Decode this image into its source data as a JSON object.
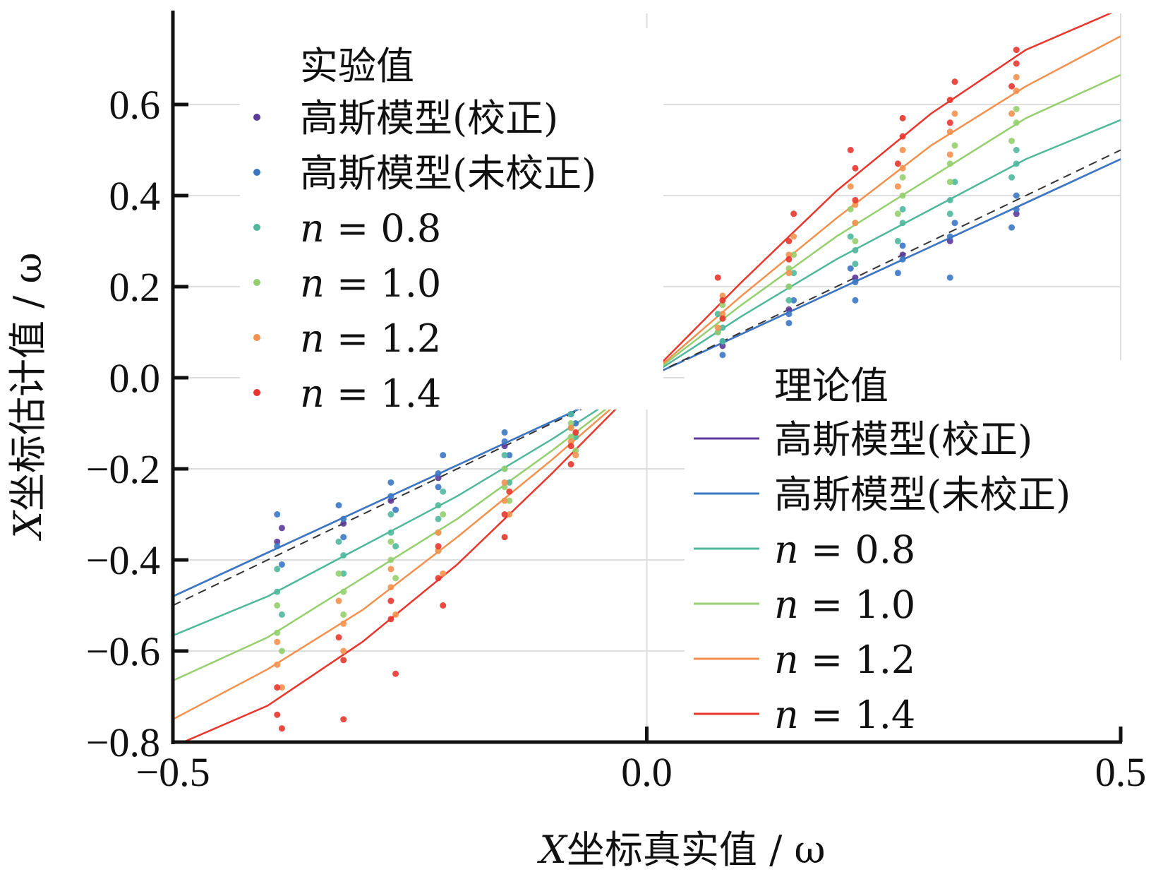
{
  "chart_data": {
    "type": "scatter",
    "xlabel": "X坐标真实值 / ω",
    "ylabel": "X坐标估计值 / ω",
    "xlim": [
      -0.5,
      0.5
    ],
    "ylim": [
      -0.8,
      0.8
    ],
    "xticks": [
      "-0.5",
      "0.0",
      "0.5"
    ],
    "yticks": [
      "-0.8",
      "-0.6",
      "-0.4",
      "-0.2",
      "0.0",
      "0.2",
      "0.4",
      "0.6"
    ],
    "grid": true,
    "scatter_legend": {
      "title": "实验值",
      "placement": "top-left",
      "entries": [
        "高斯模型(校正)",
        "高斯模型(未校正)",
        "n = 0.8",
        "n = 1.0",
        "n = 1.2",
        "n = 1.4"
      ]
    },
    "line_legend": {
      "title": "理论值",
      "placement": "bottom-right",
      "entries": [
        "高斯模型(校正)",
        "高斯模型(未校正)",
        "n = 0.8",
        "n = 1.0",
        "n = 1.2",
        "n = 1.4"
      ]
    },
    "colors": [
      "#5b3a9a",
      "#3b78c4",
      "#4fb89c",
      "#96cf6e",
      "#f4914f",
      "#e8362c"
    ],
    "theory_x": [
      -0.5,
      -0.4,
      -0.3,
      -0.2,
      -0.1,
      0.0,
      0.1,
      0.2,
      0.3,
      0.4,
      0.5
    ],
    "reference_line": {
      "style": "dashed",
      "color": "#333333",
      "y": [
        -0.5,
        -0.4,
        -0.3,
        -0.2,
        -0.1,
        0.0,
        0.1,
        0.2,
        0.3,
        0.4,
        0.5
      ]
    },
    "theory": [
      {
        "name": "高斯模型(校正)",
        "y": [
          -0.48,
          -0.384,
          -0.288,
          -0.192,
          -0.096,
          0,
          0.096,
          0.192,
          0.288,
          0.384,
          0.48
        ]
      },
      {
        "name": "高斯模型(未校正)",
        "y": [
          -0.48,
          -0.384,
          -0.288,
          -0.192,
          -0.096,
          0,
          0.096,
          0.192,
          0.288,
          0.384,
          0.48
        ]
      },
      {
        "name": "n = 0.8",
        "y": [
          -0.566,
          -0.48,
          -0.37,
          -0.26,
          -0.135,
          0,
          0.135,
          0.26,
          0.37,
          0.48,
          0.566
        ]
      },
      {
        "name": "n = 1.0",
        "y": [
          -0.665,
          -0.57,
          -0.44,
          -0.31,
          -0.16,
          0,
          0.16,
          0.31,
          0.44,
          0.57,
          0.665
        ]
      },
      {
        "name": "n = 1.2",
        "y": [
          -0.75,
          -0.64,
          -0.51,
          -0.35,
          -0.18,
          0,
          0.18,
          0.35,
          0.51,
          0.64,
          0.75
        ]
      },
      {
        "name": "n = 1.4",
        "y": [
          -0.81,
          -0.72,
          -0.58,
          -0.41,
          -0.21,
          0,
          0.21,
          0.41,
          0.58,
          0.72,
          0.81
        ]
      }
    ],
    "experiment": [
      {
        "name": "高斯模型(校正)",
        "points": [
          [
            -0.39,
            -0.36
          ],
          [
            -0.385,
            -0.33
          ],
          [
            -0.32,
            -0.32
          ],
          [
            -0.27,
            -0.27
          ],
          [
            -0.22,
            -0.22
          ],
          [
            -0.15,
            -0.15
          ],
          [
            -0.08,
            -0.08
          ],
          [
            0.08,
            0.07
          ],
          [
            0.15,
            0.15
          ],
          [
            0.22,
            0.22
          ],
          [
            0.27,
            0.27
          ],
          [
            0.32,
            0.3
          ],
          [
            0.39,
            0.36
          ]
        ]
      },
      {
        "name": "高斯模型(未校正)",
        "points": [
          [
            -0.39,
            -0.37
          ],
          [
            -0.39,
            -0.3
          ],
          [
            -0.385,
            -0.41
          ],
          [
            -0.32,
            -0.31
          ],
          [
            -0.325,
            -0.28
          ],
          [
            -0.32,
            -0.35
          ],
          [
            -0.27,
            -0.26
          ],
          [
            -0.27,
            -0.23
          ],
          [
            -0.265,
            -0.29
          ],
          [
            -0.22,
            -0.21
          ],
          [
            -0.215,
            -0.17
          ],
          [
            -0.22,
            -0.24
          ],
          [
            -0.15,
            -0.14
          ],
          [
            -0.15,
            -0.12
          ],
          [
            -0.145,
            -0.17
          ],
          [
            -0.08,
            -0.08
          ],
          [
            -0.08,
            -0.06
          ],
          [
            -0.075,
            -0.1
          ],
          [
            -0.01,
            -0.01
          ],
          [
            0.01,
            0.01
          ],
          [
            0.012,
            0.03
          ],
          [
            0.08,
            0.08
          ],
          [
            0.08,
            0.05
          ],
          [
            0.075,
            0.1
          ],
          [
            0.15,
            0.14
          ],
          [
            0.155,
            0.17
          ],
          [
            0.15,
            0.12
          ],
          [
            0.22,
            0.21
          ],
          [
            0.215,
            0.24
          ],
          [
            0.22,
            0.17
          ],
          [
            0.27,
            0.26
          ],
          [
            0.27,
            0.29
          ],
          [
            0.265,
            0.23
          ],
          [
            0.32,
            0.31
          ],
          [
            0.325,
            0.34
          ],
          [
            0.32,
            0.22
          ],
          [
            0.39,
            0.37
          ],
          [
            0.39,
            0.4
          ],
          [
            0.385,
            0.33
          ]
        ]
      },
      {
        "name": "n = 0.8",
        "points": [
          [
            -0.39,
            -0.47
          ],
          [
            -0.39,
            -0.42
          ],
          [
            -0.385,
            -0.52
          ],
          [
            -0.32,
            -0.39
          ],
          [
            -0.325,
            -0.36
          ],
          [
            -0.32,
            -0.43
          ],
          [
            -0.27,
            -0.34
          ],
          [
            -0.27,
            -0.3
          ],
          [
            -0.265,
            -0.37
          ],
          [
            -0.22,
            -0.28
          ],
          [
            -0.215,
            -0.25
          ],
          [
            -0.22,
            -0.31
          ],
          [
            -0.15,
            -0.2
          ],
          [
            -0.15,
            -0.17
          ],
          [
            -0.145,
            -0.23
          ],
          [
            -0.08,
            -0.11
          ],
          [
            -0.08,
            -0.08
          ],
          [
            -0.075,
            -0.13
          ],
          [
            -0.01,
            -0.01
          ],
          [
            0.01,
            0.02
          ],
          [
            0.012,
            0.04
          ],
          [
            0.08,
            0.11
          ],
          [
            0.08,
            0.08
          ],
          [
            0.075,
            0.14
          ],
          [
            0.15,
            0.2
          ],
          [
            0.155,
            0.23
          ],
          [
            0.15,
            0.17
          ],
          [
            0.22,
            0.28
          ],
          [
            0.215,
            0.31
          ],
          [
            0.22,
            0.25
          ],
          [
            0.27,
            0.34
          ],
          [
            0.27,
            0.37
          ],
          [
            0.265,
            0.3
          ],
          [
            0.32,
            0.39
          ],
          [
            0.325,
            0.43
          ],
          [
            0.32,
            0.36
          ],
          [
            0.39,
            0.47
          ],
          [
            0.39,
            0.5
          ],
          [
            0.385,
            0.44
          ]
        ]
      },
      {
        "name": "n = 1.0",
        "points": [
          [
            -0.39,
            -0.56
          ],
          [
            -0.39,
            -0.5
          ],
          [
            -0.385,
            -0.6
          ],
          [
            -0.32,
            -0.47
          ],
          [
            -0.325,
            -0.43
          ],
          [
            -0.32,
            -0.52
          ],
          [
            -0.27,
            -0.4
          ],
          [
            -0.27,
            -0.36
          ],
          [
            -0.265,
            -0.44
          ],
          [
            -0.22,
            -0.34
          ],
          [
            -0.215,
            -0.3
          ],
          [
            -0.22,
            -0.38
          ],
          [
            -0.15,
            -0.24
          ],
          [
            -0.15,
            -0.2
          ],
          [
            -0.145,
            -0.27
          ],
          [
            -0.08,
            -0.13
          ],
          [
            -0.08,
            -0.1
          ],
          [
            -0.075,
            -0.16
          ],
          [
            -0.01,
            -0.02
          ],
          [
            0.01,
            0.02
          ],
          [
            0.012,
            0.05
          ],
          [
            0.08,
            0.13
          ],
          [
            0.08,
            0.16
          ],
          [
            0.075,
            0.1
          ],
          [
            0.15,
            0.24
          ],
          [
            0.155,
            0.27
          ],
          [
            0.15,
            0.2
          ],
          [
            0.22,
            0.34
          ],
          [
            0.215,
            0.37
          ],
          [
            0.22,
            0.3
          ],
          [
            0.27,
            0.4
          ],
          [
            0.27,
            0.44
          ],
          [
            0.265,
            0.36
          ],
          [
            0.32,
            0.47
          ],
          [
            0.325,
            0.51
          ],
          [
            0.32,
            0.43
          ],
          [
            0.39,
            0.56
          ],
          [
            0.39,
            0.59
          ],
          [
            0.385,
            0.52
          ]
        ]
      },
      {
        "name": "n = 1.2",
        "points": [
          [
            -0.39,
            -0.63
          ],
          [
            -0.39,
            -0.58
          ],
          [
            -0.385,
            -0.68
          ],
          [
            -0.32,
            -0.54
          ],
          [
            -0.325,
            -0.49
          ],
          [
            -0.32,
            -0.6
          ],
          [
            -0.27,
            -0.46
          ],
          [
            -0.27,
            -0.42
          ],
          [
            -0.265,
            -0.52
          ],
          [
            -0.22,
            -0.38
          ],
          [
            -0.215,
            -0.43
          ],
          [
            -0.22,
            -0.34
          ],
          [
            -0.15,
            -0.27
          ],
          [
            -0.15,
            -0.23
          ],
          [
            -0.145,
            -0.3
          ],
          [
            -0.08,
            -0.14
          ],
          [
            -0.08,
            -0.11
          ],
          [
            -0.075,
            -0.17
          ],
          [
            -0.01,
            -0.02
          ],
          [
            0.01,
            0.03
          ],
          [
            0.012,
            0.07
          ],
          [
            0.08,
            0.14
          ],
          [
            0.08,
            0.18
          ],
          [
            0.075,
            0.11
          ],
          [
            0.15,
            0.27
          ],
          [
            0.155,
            0.31
          ],
          [
            0.15,
            0.23
          ],
          [
            0.22,
            0.38
          ],
          [
            0.215,
            0.42
          ],
          [
            0.22,
            0.34
          ],
          [
            0.27,
            0.46
          ],
          [
            0.27,
            0.5
          ],
          [
            0.265,
            0.42
          ],
          [
            0.32,
            0.54
          ],
          [
            0.325,
            0.58
          ],
          [
            0.32,
            0.49
          ],
          [
            0.39,
            0.63
          ],
          [
            0.39,
            0.66
          ],
          [
            0.385,
            0.58
          ]
        ]
      },
      {
        "name": "n = 1.4",
        "points": [
          [
            -0.39,
            -0.74
          ],
          [
            -0.39,
            -0.68
          ],
          [
            -0.385,
            -0.77
          ],
          [
            -0.32,
            -0.62
          ],
          [
            -0.325,
            -0.57
          ],
          [
            -0.32,
            -0.75
          ],
          [
            -0.27,
            -0.53
          ],
          [
            -0.27,
            -0.49
          ],
          [
            -0.265,
            -0.65
          ],
          [
            -0.22,
            -0.44
          ],
          [
            -0.215,
            -0.5
          ],
          [
            -0.22,
            -0.37
          ],
          [
            -0.15,
            -0.3
          ],
          [
            -0.15,
            -0.35
          ],
          [
            -0.145,
            -0.25
          ],
          [
            -0.08,
            -0.15
          ],
          [
            -0.08,
            -0.19
          ],
          [
            -0.075,
            -0.12
          ],
          [
            -0.01,
            -0.03
          ],
          [
            -0.01,
            -0.05
          ],
          [
            0.01,
            0.06
          ],
          [
            0.012,
            0.09
          ],
          [
            0.08,
            0.17
          ],
          [
            0.08,
            0.13
          ],
          [
            0.075,
            0.22
          ],
          [
            0.15,
            0.3
          ],
          [
            0.155,
            0.36
          ],
          [
            0.15,
            0.26
          ],
          [
            0.22,
            0.46
          ],
          [
            0.215,
            0.5
          ],
          [
            0.22,
            0.39
          ],
          [
            0.27,
            0.53
          ],
          [
            0.27,
            0.57
          ],
          [
            0.265,
            0.47
          ],
          [
            0.32,
            0.61
          ],
          [
            0.325,
            0.65
          ],
          [
            0.32,
            0.56
          ],
          [
            0.39,
            0.69
          ],
          [
            0.39,
            0.72
          ],
          [
            0.385,
            0.64
          ]
        ]
      }
    ]
  }
}
